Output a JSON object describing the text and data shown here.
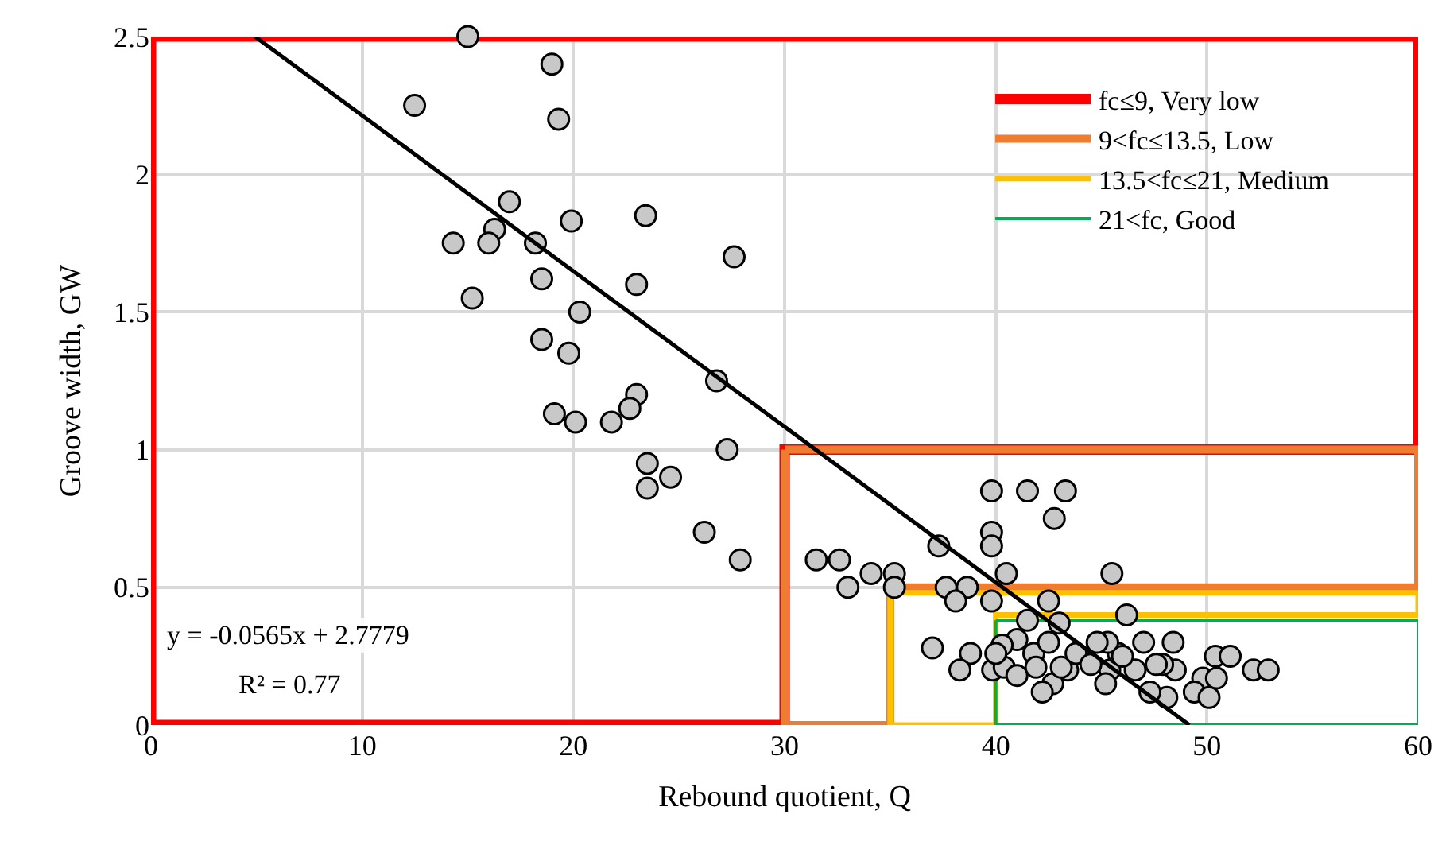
{
  "chart_data": {
    "type": "scatter",
    "xlabel": "Rebound quotient, Q",
    "ylabel": "Groove width, GW",
    "xlim": [
      0,
      60
    ],
    "ylim": [
      0,
      2.5
    ],
    "xticks": [
      0,
      10,
      20,
      30,
      40,
      50,
      60
    ],
    "yticks": [
      0,
      0.5,
      1,
      1.5,
      2,
      2.5
    ],
    "grid": true,
    "legend": "top right",
    "marker": "circle",
    "annotations": [
      "y = -0.0565x + 2.7779",
      "R² = 0.77"
    ],
    "series": [
      {
        "name": "fc≤9, Very low",
        "type": "line",
        "marker": "none",
        "color": "#ff0000",
        "x": [
          0,
          0,
          30,
          30,
          60,
          60
        ],
        "values": [
          2.5,
          0,
          0,
          1,
          1,
          2.5
        ]
      },
      {
        "type": "line",
        "marker": "none",
        "color": "#ff0000",
        "x": [
          0,
          60
        ],
        "values": [
          2.5,
          2.5
        ]
      },
      {
        "name": "9<fc≤13.5, Low",
        "type": "line",
        "marker": "none",
        "color": "#ed7d31",
        "x": [
          30,
          30,
          35,
          35,
          60,
          60
        ],
        "values": [
          1,
          0,
          0,
          0.5,
          0.5,
          1
        ]
      },
      {
        "type": "line",
        "marker": "none",
        "color": "#ed7d31",
        "x": [
          30,
          60
        ],
        "values": [
          1,
          1
        ]
      },
      {
        "name": "13.5<fc≤21, Medium",
        "type": "line",
        "marker": "none",
        "color": "#ffc000",
        "x": [
          35,
          35,
          40,
          40,
          60,
          60
        ],
        "values": [
          0.48,
          0,
          0,
          0.4,
          0.4,
          0.48
        ]
      },
      {
        "type": "line",
        "marker": "none",
        "color": "#ffc000",
        "x": [
          35,
          60
        ],
        "values": [
          0.48,
          0.48
        ]
      },
      {
        "name": "21<fc, Good",
        "type": "line",
        "marker": "none",
        "color": "#00b050",
        "x": [
          40,
          40,
          60,
          60
        ],
        "values": [
          0.38,
          0,
          0,
          0.38
        ]
      },
      {
        "type": "line",
        "marker": "none",
        "color": "#00b050",
        "x": [
          40,
          60
        ],
        "values": [
          0.38,
          0.38
        ]
      },
      {
        "color": "#c8c8c8",
        "x": [
          15.0,
          18.98,
          12.48,
          19.3,
          16.97,
          23.42,
          19.9,
          16.27,
          14.31,
          15.99,
          18.2,
          27.61,
          18.5,
          22.99,
          15.21,
          20.3,
          18.5,
          19.78,
          26.78,
          22.99,
          22.67,
          19.1,
          20.1,
          21.8,
          27.28,
          23.5,
          24.6,
          23.5,
          26.2,
          27.9,
          39.8,
          41.5,
          43.3,
          42.77,
          39.8,
          39.8,
          37.3,
          31.5,
          32.6,
          34.1,
          35.2,
          33.0,
          35.2,
          40.5,
          37.65,
          38.65,
          38.1,
          39.8,
          42.5,
          37.0,
          38.8,
          38.3,
          39.85,
          45.5,
          46.2,
          47.0,
          48.4,
          50.4,
          51.1,
          52.2,
          52.9,
          49.8,
          50.45,
          49.4,
          50.1,
          48.1,
          48.5,
          47.9,
          46.6,
          45.4,
          45.2,
          47.3,
          43.4,
          45.8,
          45.3,
          47.6,
          46.0,
          42.7,
          41.0,
          41.8,
          42.5,
          43.1,
          42.2,
          40.4,
          41.0,
          43.8,
          44.8,
          44.5,
          41.5,
          43.0,
          40.3,
          41.9,
          40.0
        ],
        "values": [
          2.5,
          2.4,
          2.25,
          2.2,
          1.9,
          1.85,
          1.83,
          1.8,
          1.75,
          1.75,
          1.75,
          1.7,
          1.62,
          1.6,
          1.55,
          1.5,
          1.4,
          1.35,
          1.25,
          1.2,
          1.15,
          1.13,
          1.1,
          1.1,
          1.0,
          0.95,
          0.9,
          0.86,
          0.7,
          0.6,
          0.85,
          0.85,
          0.85,
          0.75,
          0.7,
          0.65,
          0.65,
          0.6,
          0.6,
          0.55,
          0.55,
          0.5,
          0.5,
          0.55,
          0.5,
          0.5,
          0.45,
          0.45,
          0.45,
          0.28,
          0.26,
          0.2,
          0.2,
          0.55,
          0.4,
          0.3,
          0.3,
          0.25,
          0.25,
          0.2,
          0.2,
          0.17,
          0.17,
          0.12,
          0.1,
          0.1,
          0.2,
          0.22,
          0.2,
          0.2,
          0.15,
          0.12,
          0.2,
          0.26,
          0.3,
          0.22,
          0.25,
          0.15,
          0.31,
          0.26,
          0.3,
          0.21,
          0.12,
          0.21,
          0.18,
          0.26,
          0.3,
          0.22,
          0.38,
          0.37,
          0.29,
          0.21,
          0.26
        ]
      },
      {
        "type": "line",
        "marker": "none",
        "color": "#000000",
        "x": [
          4.92,
          49.17
        ],
        "values": [
          2.5,
          0
        ]
      }
    ]
  }
}
